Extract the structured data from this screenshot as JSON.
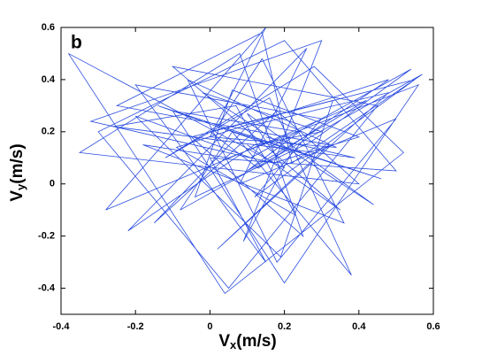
{
  "chart_data": {
    "type": "line",
    "annotation": "b",
    "xlabel": [
      "V",
      "x",
      "(m/s)"
    ],
    "ylabel": [
      "V",
      "y",
      "(m/s)"
    ],
    "color": "#2b4de0",
    "xlim": [
      -0.4,
      0.6
    ],
    "xticks": [
      -0.4,
      -0.2,
      0,
      0.2,
      0.4,
      0.6
    ],
    "ylim": [
      -0.5,
      0.6
    ],
    "yticks": [
      -0.4,
      -0.2,
      0,
      0.2,
      0.4,
      0.6
    ],
    "x": [
      0.1,
      0.35,
      -0.1,
      0.45,
      0.05,
      -0.3,
      0.2,
      0.5,
      0.0,
      0.15,
      -0.2,
      0.3,
      0.12,
      0.55,
      -0.05,
      0.25,
      0.08,
      -0.35,
      0.4,
      0.18,
      -0.15,
      0.1,
      0.48,
      0.02,
      0.32,
      -0.25,
      0.14,
      0.22,
      0.57,
      -0.08,
      0.06,
      0.38,
      0.16,
      -0.12,
      0.28,
      0.52,
      0.04,
      -0.38,
      0.2,
      0.1,
      0.44,
      -0.02,
      0.3,
      0.12,
      -0.22,
      0.26,
      0.08,
      0.5,
      0.18,
      -0.06,
      0.34,
      0.0,
      0.15,
      -0.28,
      0.42,
      0.1,
      0.24,
      -0.1,
      0.2,
      0.56,
      0.05,
      -0.18,
      0.36,
      0.14,
      0.02,
      0.46,
      -0.14,
      0.22,
      0.09,
      0.3,
      -0.32,
      0.17,
      0.4,
      0.06,
      -0.04,
      0.27,
      0.54,
      0.11,
      -0.2,
      0.19,
      0.33,
      0.0,
      0.13,
      0.48,
      -0.09,
      0.23,
      0.07,
      -0.26,
      0.39,
      0.15
    ],
    "values": [
      0.15,
      -0.1,
      0.45,
      0.3,
      -0.4,
      0.2,
      0.55,
      0.05,
      0.1,
      -0.3,
      0.38,
      0.25,
      -0.05,
      0.4,
      0.18,
      -0.2,
      0.5,
      0.12,
      0.0,
      0.28,
      -0.15,
      0.22,
      0.35,
      -0.25,
      0.15,
      0.3,
      0.58,
      0.08,
      0.42,
      -0.1,
      0.2,
      -0.35,
      0.33,
      0.1,
      0.45,
      0.12,
      -0.42,
      0.5,
      0.06,
      0.27,
      -0.08,
      0.35,
      0.2,
      0.15,
      -0.18,
      0.52,
      0.0,
      0.25,
      -0.3,
      0.4,
      0.14,
      0.18,
      0.6,
      -0.1,
      0.32,
      0.05,
      0.2,
      0.28,
      -0.38,
      0.38,
      0.1,
      0.15,
      -0.15,
      0.48,
      0.22,
      0.02,
      0.3,
      0.12,
      -0.22,
      0.55,
      0.24,
      0.08,
      0.18,
      0.36,
      -0.05,
      0.16,
      0.44,
      0.1,
      0.26,
      -0.28,
      0.32,
      0.2,
      0.06,
      0.4,
      0.14,
      -0.12,
      0.3,
      0.22,
      0.1,
      0.18
    ]
  }
}
